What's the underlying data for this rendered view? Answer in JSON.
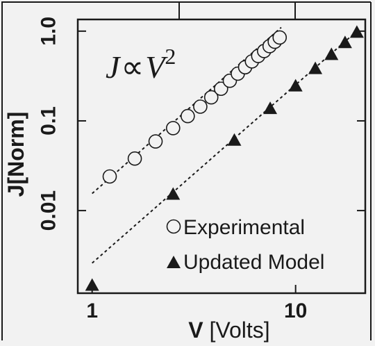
{
  "chart_data": {
    "type": "scatter",
    "x_scale": "log",
    "y_scale": "log",
    "xlim": [
      0.85,
      22
    ],
    "ylim": [
      0.0012,
      1.35
    ],
    "xlabel_bold": "V",
    "xlabel_rest": " [Volts]",
    "ylabel": "J[Norm]",
    "x_ticks": [
      {
        "value": 1,
        "label": "1"
      },
      {
        "value": 10,
        "label": "10"
      }
    ],
    "y_ticks": [
      {
        "value": 1,
        "label": "1.0"
      },
      {
        "value": 0.1,
        "label": "0.1"
      },
      {
        "value": 0.01,
        "label": "0.01"
      }
    ],
    "annotation": {
      "lhs": "J",
      "sym": "∝",
      "rhs": "V",
      "exp": "2"
    },
    "legend": {
      "placement": "bottom-right",
      "entries": [
        {
          "marker": "open-circle",
          "label": "Experimental"
        },
        {
          "marker": "filled-triangle",
          "label": "Updated Model"
        }
      ]
    },
    "series": [
      {
        "name": "Experimental",
        "marker": "open-circle",
        "x": [
          1.22,
          1.62,
          2.05,
          2.5,
          2.95,
          3.4,
          3.85,
          4.3,
          4.75,
          5.2,
          5.65,
          6.1,
          6.55,
          7.0,
          7.45,
          7.9,
          8.35
        ],
        "y": [
          0.024,
          0.038,
          0.059,
          0.083,
          0.113,
          0.144,
          0.183,
          0.228,
          0.28,
          0.336,
          0.396,
          0.46,
          0.529,
          0.6,
          0.68,
          0.762,
          0.85
        ]
      },
      {
        "name": "Updated Model",
        "marker": "filled-triangle",
        "x": [
          1.0,
          2.5,
          5.0,
          7.5,
          10.0,
          12.5,
          15.0,
          17.5,
          20.0
        ],
        "y": [
          0.0015,
          0.0155,
          0.062,
          0.14,
          0.25,
          0.39,
          0.56,
          0.76,
          0.99
        ]
      }
    ],
    "fit_lines": [
      {
        "name": "fit-experimental",
        "style": "dashed",
        "x": [
          1.0,
          8.5
        ],
        "y": [
          0.0155,
          1.1
        ]
      },
      {
        "name": "fit-model",
        "style": "dashed",
        "x": [
          1.0,
          20.0
        ],
        "y": [
          0.0026,
          1.0
        ]
      }
    ],
    "colors": {
      "ink": "#1a1a1a",
      "background": "#f2f2f2"
    }
  }
}
